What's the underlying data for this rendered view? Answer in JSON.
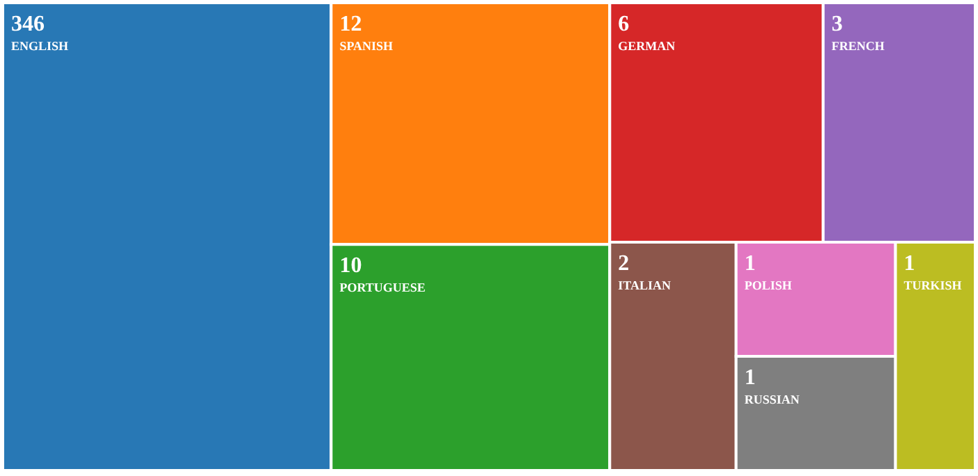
{
  "chart_data": {
    "type": "other",
    "categories": [
      "ENGLISH",
      "SPANISH",
      "PORTUGUESE",
      "GERMAN",
      "FRENCH",
      "ITALIAN",
      "POLISH",
      "RUSSIAN",
      "TURKISH"
    ],
    "values": [
      346,
      12,
      10,
      6,
      3,
      2,
      1,
      1,
      1
    ],
    "colors": [
      "#2878b5",
      "#ff7f0e",
      "#2ca02c",
      "#d62728",
      "#9467bd",
      "#8c564b",
      "#e377c2",
      "#7f7f7f",
      "#bcbd22"
    ],
    "data_labels": true
  }
}
